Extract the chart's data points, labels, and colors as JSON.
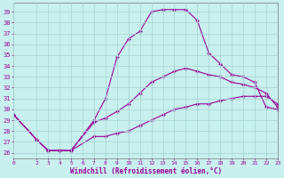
{
  "xlabel": "Windchill (Refroidissement éolien,°C)",
  "background_color": "#c8f0ee",
  "grid_color": "#a8d8d4",
  "line_color": "#990099",
  "xlim": [
    0,
    23
  ],
  "ylim": [
    25.5,
    39.8
  ],
  "yticks": [
    26,
    27,
    28,
    29,
    30,
    31,
    32,
    33,
    34,
    35,
    36,
    37,
    38,
    39
  ],
  "xticks": [
    0,
    2,
    3,
    4,
    5,
    6,
    7,
    8,
    9,
    10,
    11,
    12,
    13,
    14,
    15,
    16,
    17,
    18,
    19,
    20,
    21,
    22,
    23
  ],
  "curve1_x": [
    0,
    2,
    3,
    4,
    5,
    7,
    8,
    9,
    10,
    11,
    12,
    13,
    14,
    15,
    16,
    17,
    18,
    19,
    20,
    21,
    22,
    23
  ],
  "curve1_y": [
    29.5,
    27.2,
    26.2,
    26.2,
    26.2,
    29.0,
    31.0,
    34.8,
    36.5,
    37.2,
    39.0,
    39.2,
    39.2,
    39.2,
    38.2,
    35.2,
    34.2,
    33.2,
    33.0,
    32.5,
    30.2,
    30.0
  ],
  "curve2_x": [
    0,
    2,
    3,
    4,
    5,
    7,
    8,
    9,
    10,
    11,
    12,
    13,
    14,
    15,
    16,
    17,
    18,
    19,
    20,
    21,
    22,
    23
  ],
  "curve2_y": [
    29.5,
    27.2,
    26.2,
    26.2,
    26.2,
    28.8,
    29.2,
    29.8,
    30.5,
    31.5,
    32.5,
    33.0,
    33.5,
    33.8,
    33.5,
    33.2,
    33.0,
    32.5,
    32.3,
    32.0,
    31.5,
    30.2
  ],
  "curve3_x": [
    0,
    2,
    3,
    4,
    5,
    7,
    8,
    9,
    10,
    11,
    12,
    13,
    14,
    15,
    16,
    17,
    18,
    19,
    20,
    21,
    22,
    23
  ],
  "curve3_y": [
    29.5,
    27.2,
    26.2,
    26.2,
    26.2,
    27.5,
    27.5,
    27.8,
    28.0,
    28.5,
    29.0,
    29.5,
    30.0,
    30.2,
    30.5,
    30.5,
    30.8,
    31.0,
    31.2,
    31.2,
    31.2,
    30.5
  ]
}
